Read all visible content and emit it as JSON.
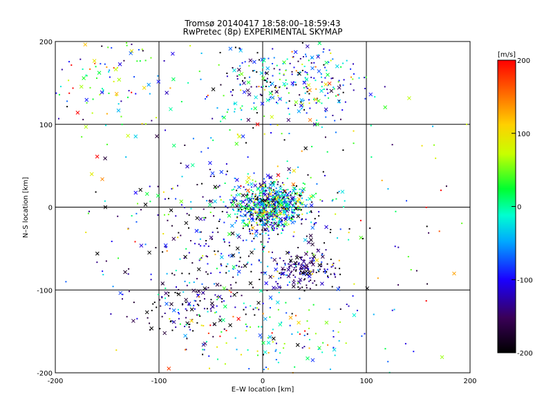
{
  "chart_data": {
    "type": "scatter",
    "title": "Tromsø 20140417 18:58:00–18:59:43",
    "subtitle": "RwPretec (8p) EXPERIMENTAL SKYMAP",
    "xlabel": "E–W location [km]",
    "ylabel": "N–S location [km]",
    "xlim": [
      -200,
      200
    ],
    "ylim": [
      -200,
      200
    ],
    "xticks": [
      "-200",
      "-100",
      "0",
      "100",
      "200"
    ],
    "yticks": [
      "-200",
      "-100",
      "0",
      "100",
      "200"
    ],
    "grid": true,
    "colorbar": {
      "label": "[m/s]",
      "range": [
        -200,
        200
      ],
      "ticks": [
        "-200",
        "-100",
        "0",
        "100",
        "200"
      ],
      "colormap": "rainbow (black-purple-blue-cyan-green-yellow-red)"
    },
    "markers": [
      "dot",
      "x"
    ],
    "clusters": [
      {
        "cx": 8,
        "cy": 2,
        "sx": 18,
        "sy": 14,
        "n": 700,
        "vmean": -40,
        "vsd": 90
      },
      {
        "cx": 25,
        "cy": 150,
        "sx": 35,
        "sy": 25,
        "n": 300,
        "vmean": -60,
        "vsd": 100
      },
      {
        "cx": 40,
        "cy": -80,
        "sx": 15,
        "sy": 12,
        "n": 160,
        "vmean": -150,
        "vsd": 40
      },
      {
        "cx": -30,
        "cy": -40,
        "sx": 50,
        "sy": 50,
        "n": 320,
        "vmean": -140,
        "vsd": 80
      },
      {
        "cx": -70,
        "cy": -120,
        "sx": 25,
        "sy": 18,
        "n": 100,
        "vmean": -160,
        "vsd": 50
      },
      {
        "cx": 0,
        "cy": -150,
        "sx": 60,
        "sy": 35,
        "n": 150,
        "vmean": 0,
        "vsd": 100
      },
      {
        "cx": -150,
        "cy": 150,
        "sx": 35,
        "sy": 30,
        "n": 100,
        "vmean": 0,
        "vsd": 100
      },
      {
        "cx": 0,
        "cy": 0,
        "sx": 110,
        "sy": 110,
        "n": 260,
        "vmean": -20,
        "vsd": 120
      }
    ]
  }
}
